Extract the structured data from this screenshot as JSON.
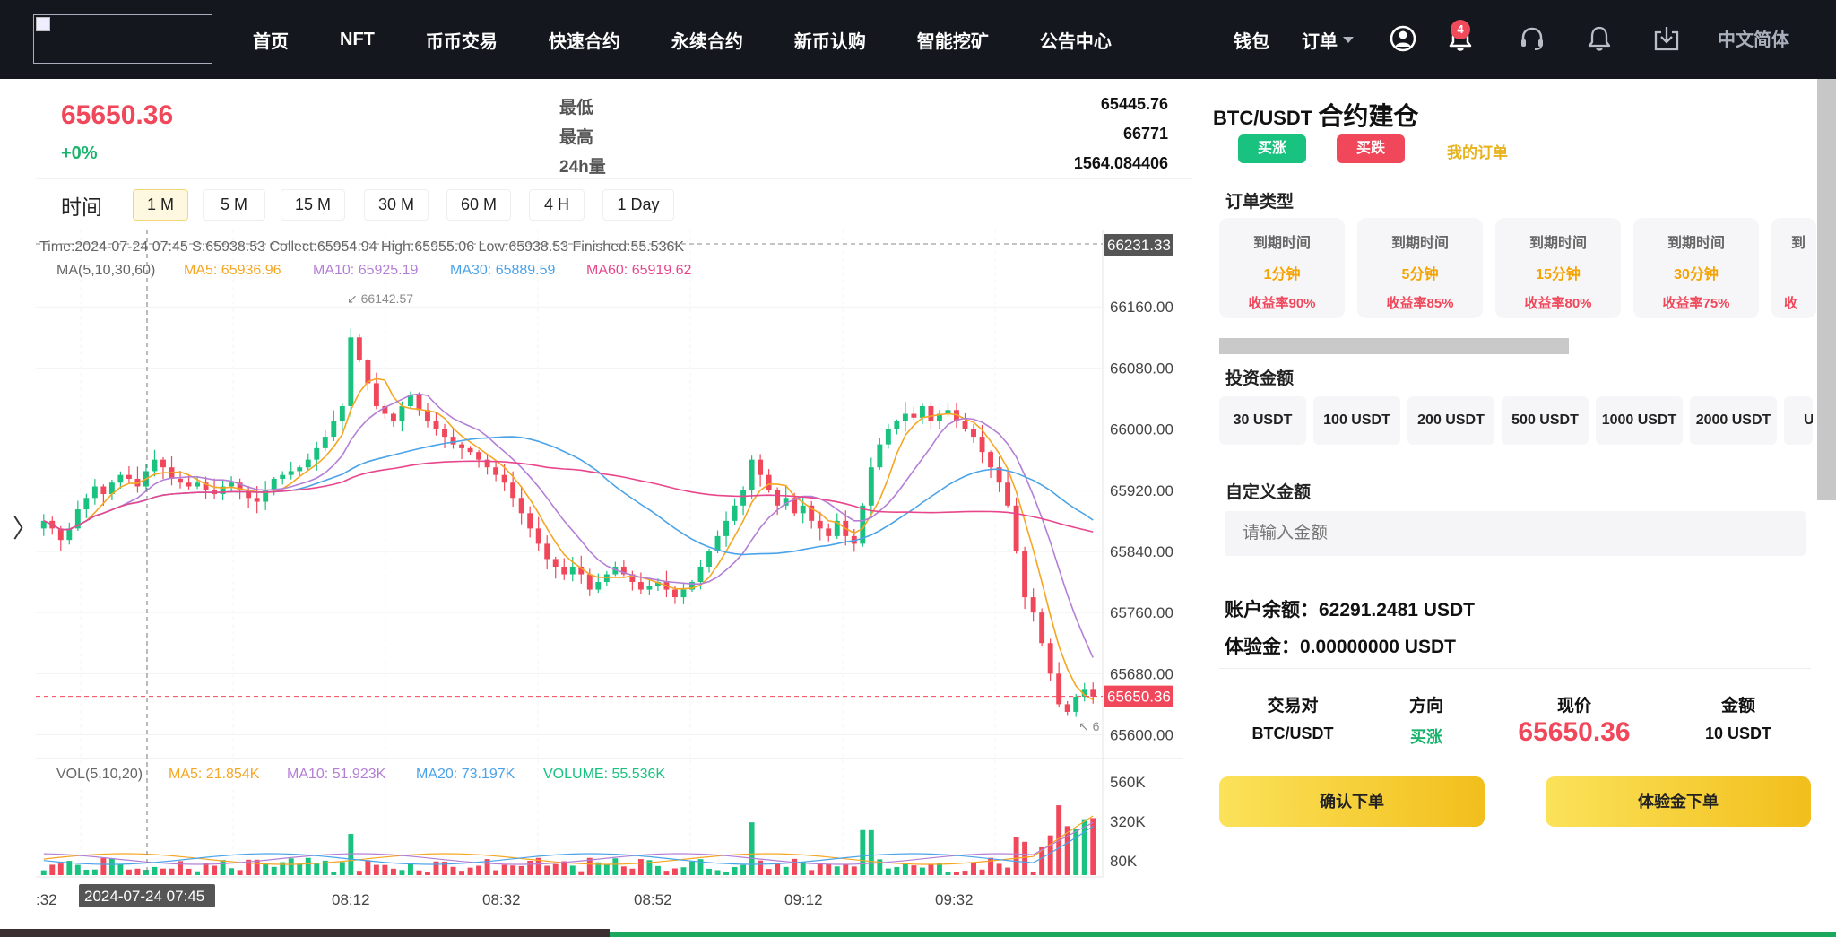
{
  "header": {
    "nav": [
      "首页",
      "NFT",
      "币币交易",
      "快速合约",
      "永续合约",
      "新币认购",
      "智能挖矿",
      "公告中心"
    ],
    "wallet": "钱包",
    "orders": "订单",
    "notification_count": "4",
    "language": "中文简体",
    "icons": [
      "user-icon",
      "bell-icon",
      "headset-icon",
      "bell-outline-icon",
      "download-icon"
    ]
  },
  "ticker": {
    "price": "65650.36",
    "change": "+0%",
    "low_label": "最低",
    "low_value": "65445.76",
    "high_label": "最高",
    "high_value": "66771",
    "vol_label": "24h量",
    "vol_value": "1564.084406"
  },
  "timeframes": {
    "label": "时间",
    "options": [
      "1 M",
      "5 M",
      "15 M",
      "30 M",
      "60 M",
      "4 H",
      "1 Day"
    ],
    "active": "1 M"
  },
  "chart_legend": {
    "info": "Time:2024-07-24 07:45    S:65938.53    Collect:65954.94    High:65955.06    Low:65938.53    Finished:55.536K",
    "ma_title": "MA(5,10,30,60)",
    "ma5": "MA5: 65936.96",
    "ma10": "MA10: 65925.19",
    "ma30": "MA30: 65889.59",
    "ma60": "MA60: 65919.62",
    "max_label": "66142.57",
    "min_label": "6",
    "vol_title": "VOL(5,10,20)",
    "vol_ma5": "MA5: 21.854K",
    "vol_ma10": "MA10: 51.923K",
    "vol_ma20": "MA20: 73.197K",
    "volume": "VOLUME: 55.536K",
    "crosshair_price": "66231.33",
    "last_price": "65650.36",
    "crosshair_time": "2024-07-24 07:45",
    "colors": {
      "up": "#19c27f",
      "down": "#f0475a",
      "ma5": "#f5a623",
      "ma10": "#b37fd6",
      "ma30": "#4aa3e8",
      "ma60": "#e8468c"
    }
  },
  "chart_data": {
    "type": "candlestick",
    "price_ticks": [
      "66160.00",
      "66080.00",
      "66000.00",
      "65920.00",
      "65840.00",
      "65760.00",
      "65680.00",
      "65600.00"
    ],
    "volume_ticks": [
      "560K",
      "320K",
      "80K"
    ],
    "time_ticks": [
      ":32",
      "2",
      "08:12",
      "08:32",
      "08:52",
      "09:12",
      "09:32"
    ],
    "ylim": [
      65583,
      66240
    ],
    "vol_ylim": [
      0,
      680
    ]
  },
  "panel": {
    "pair": "BTC/USDT",
    "title": "合约建仓",
    "buy_up": "买涨",
    "buy_down": "买跌",
    "my_orders": "我的订单",
    "order_type_title": "订单类型",
    "order_types": [
      {
        "label": "到期时间",
        "time": "1分钟",
        "rate": "收益率90%"
      },
      {
        "label": "到期时间",
        "time": "5分钟",
        "rate": "收益率85%"
      },
      {
        "label": "到期时间",
        "time": "15分钟",
        "rate": "收益率80%"
      },
      {
        "label": "到期时间",
        "time": "30分钟",
        "rate": "收益率75%"
      },
      {
        "label": "到",
        "time": "",
        "rate": "收"
      }
    ],
    "invest_title": "投资金额",
    "amounts": [
      "30 USDT",
      "100 USDT",
      "200 USDT",
      "500 USDT",
      "1000 USDT",
      "2000 USDT",
      "U"
    ],
    "custom_title": "自定义金额",
    "custom_placeholder": "请输入金额",
    "balance": "账户余额：62291.2481 USDT",
    "trial": "体验金：0.00000000 USDT",
    "summary_heads": [
      "交易对",
      "方向",
      "现价",
      "金额"
    ],
    "summary_pair": "BTC/USDT",
    "summary_dir": "买涨",
    "summary_price": "65650.36",
    "summary_amount": "10 USDT",
    "confirm": "确认下单",
    "trial_confirm": "体验金下单"
  }
}
